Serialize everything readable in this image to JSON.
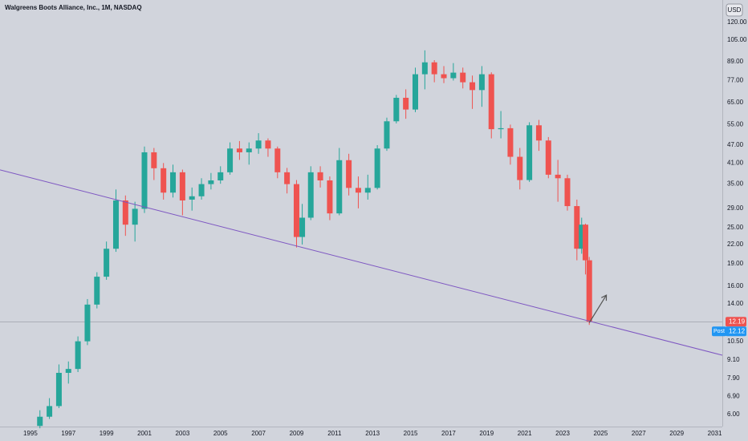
{
  "chart_data": {
    "type": "candlestick",
    "title": "Walgreens Boots Alliance, Inc., 1M, NASDAQ",
    "currency": "USD",
    "log_scale": true,
    "grid": false,
    "up_color": "#26a69a",
    "down_color": "#ef5350",
    "xlim": [
      1993.4,
      2031.4
    ],
    "xticks": [
      1995,
      1997,
      1999,
      2001,
      2003,
      2005,
      2007,
      2009,
      2011,
      2013,
      2015,
      2017,
      2019,
      2021,
      2023,
      2025,
      2027,
      2029,
      2031
    ],
    "ylim": [
      5.54,
      142.5
    ],
    "yticks": [
      {
        "value": 120,
        "label": "120.00"
      },
      {
        "value": 105,
        "label": "105.00"
      },
      {
        "value": 89,
        "label": "89.00"
      },
      {
        "value": 77,
        "label": "77.00"
      },
      {
        "value": 65,
        "label": "65.00"
      },
      {
        "value": 55,
        "label": "55.00"
      },
      {
        "value": 47,
        "label": "47.00"
      },
      {
        "value": 41,
        "label": "41.00"
      },
      {
        "value": 35,
        "label": "35.00"
      },
      {
        "value": 29,
        "label": "29.00"
      },
      {
        "value": 25,
        "label": "25.00"
      },
      {
        "value": 22,
        "label": "22.00"
      },
      {
        "value": 19,
        "label": "19.00"
      },
      {
        "value": 16,
        "label": "16.00"
      },
      {
        "value": 14,
        "label": "14.00"
      },
      {
        "value": 10.5,
        "label": "10.50"
      },
      {
        "value": 9.1,
        "label": "9.10"
      },
      {
        "value": 7.9,
        "label": "7.90"
      },
      {
        "value": 6.9,
        "label": "6.90"
      },
      {
        "value": 6,
        "label": "6.00"
      }
    ],
    "x": [
      1995.5,
      1996,
      1996.5,
      1997,
      1997.5,
      1998,
      1998.5,
      1999,
      1999.5,
      2000,
      2000.5,
      2001,
      2001.5,
      2002,
      2002.5,
      2003,
      2003.5,
      2004,
      2004.5,
      2005,
      2005.5,
      2006,
      2006.5,
      2007,
      2007.5,
      2008,
      2008.5,
      2009,
      2009.3,
      2009.75,
      2010.25,
      2010.75,
      2011.25,
      2011.75,
      2012.25,
      2012.75,
      2013.25,
      2013.75,
      2014.25,
      2014.75,
      2015.25,
      2015.75,
      2016.25,
      2016.75,
      2017.25,
      2017.75,
      2018.25,
      2018.75,
      2019.25,
      2019.75,
      2020.25,
      2020.75,
      2021.25,
      2021.75,
      2022.25,
      2022.75,
      2023.25,
      2023.75,
      2024,
      2024.2,
      2024.4
    ],
    "open": [
      5.5,
      5.9,
      6.4,
      8.25,
      8.5,
      10.5,
      13.9,
      17.2,
      21.3,
      30.8,
      25.6,
      28.9,
      44.5,
      39.4,
      32.7,
      38.2,
      31,
      31.8,
      34.9,
      35.9,
      38.2,
      45.8,
      44.5,
      45.8,
      48.7,
      45.8,
      38.2,
      34.9,
      23.3,
      27,
      38.2,
      35.9,
      27.9,
      41.9,
      33.9,
      32.7,
      33.9,
      45.8,
      56.4,
      67.5,
      61.7,
      80.8,
      88.5,
      80.8,
      78.4,
      81.8,
      76,
      71.6,
      80.8,
      53.1,
      53.5,
      43,
      36,
      54.7,
      48.7,
      37.5,
      36.5,
      29.5,
      21.3,
      25.6,
      19.5
    ],
    "high": [
      6.2,
      6.8,
      8.8,
      9,
      10.9,
      14.5,
      17.8,
      22.5,
      33.5,
      32,
      30.5,
      46.5,
      46,
      41,
      40.5,
      39,
      34,
      36.5,
      38,
      40,
      48,
      48.5,
      48,
      51.5,
      49.5,
      46.5,
      39.5,
      36,
      30,
      40,
      40,
      37,
      46,
      44,
      37,
      37.5,
      47,
      58,
      69,
      72,
      85,
      97,
      90,
      86,
      88,
      85,
      80,
      86,
      82,
      61,
      55,
      46,
      56,
      57,
      50,
      42,
      37.5,
      31,
      27,
      25.8,
      20
    ],
    "low": [
      5.4,
      5.8,
      6.3,
      7.6,
      8.3,
      10.2,
      13.5,
      16.8,
      20.8,
      23.5,
      22.5,
      28,
      36,
      31,
      31.5,
      27.5,
      28.5,
      31,
      33.5,
      35,
      37.5,
      42,
      40.5,
      44,
      43,
      36.5,
      32.5,
      21.5,
      22,
      26.5,
      34,
      26.5,
      27.5,
      32,
      29,
      31,
      33.5,
      45,
      55.5,
      57.5,
      60.5,
      72,
      76,
      75.5,
      77,
      72.5,
      62,
      63,
      49.5,
      49.5,
      40.5,
      33.5,
      35.5,
      45,
      36.5,
      30.5,
      28.5,
      19.5,
      20.5,
      17.5,
      11.9
    ],
    "close": [
      5.9,
      6.4,
      8.25,
      8.5,
      10.5,
      13.9,
      17.2,
      21.3,
      30.8,
      25.6,
      28.9,
      44.5,
      39.4,
      32.7,
      38.2,
      30.8,
      31.8,
      34.9,
      35.9,
      38.2,
      45.8,
      44.5,
      45.8,
      48.7,
      45.8,
      38.2,
      34.9,
      23.3,
      27,
      38.2,
      35.9,
      27.9,
      41.9,
      33.9,
      32.7,
      33.9,
      45.8,
      56.4,
      67.5,
      61.7,
      80.8,
      88.5,
      80.8,
      78.4,
      81.8,
      76,
      71.6,
      80.8,
      53.1,
      53.5,
      43,
      36,
      54.7,
      48.7,
      37.5,
      36.5,
      29.5,
      21.3,
      25.6,
      19.5,
      12.19
    ],
    "trendline": {
      "x": [
        1993.4,
        2031.4
      ],
      "y": [
        38.9,
        9.44
      ],
      "color": "#7e57c2"
    },
    "arrow": {
      "x": [
        2024.4,
        2025.3
      ],
      "y": [
        12.1,
        14.94
      ],
      "color": "#555555"
    },
    "last_price": {
      "value": 12.19,
      "color": "#ef5350"
    },
    "post_market": {
      "label": "Post",
      "value": 12.12,
      "color": "#2196f3"
    }
  }
}
